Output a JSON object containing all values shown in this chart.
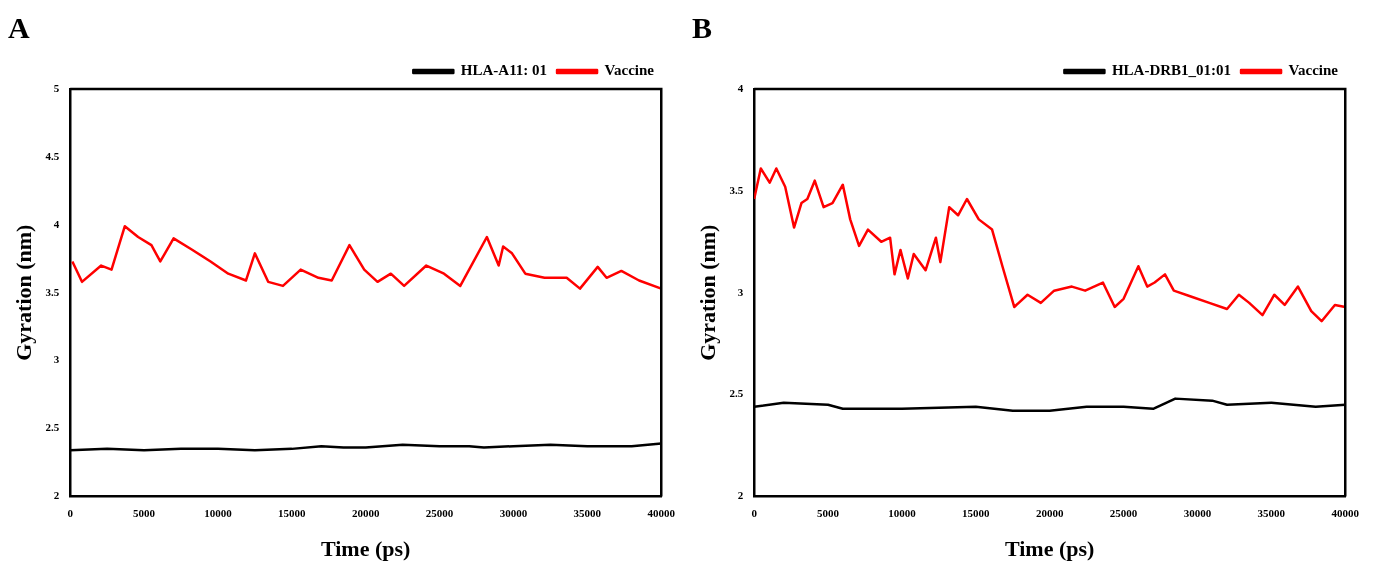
{
  "chart_data": [
    {
      "type": "line",
      "title": "A",
      "xlabel": "Time (ps)",
      "ylabel": "Gyration (nm)",
      "xlim": [
        0,
        40000
      ],
      "xticks": [
        0,
        5000,
        10000,
        15000,
        20000,
        25000,
        30000,
        35000,
        40000
      ],
      "ylim": [
        2,
        5
      ],
      "yticks": [
        2,
        2.5,
        3,
        3.5,
        4,
        4.5,
        5
      ],
      "grid": false,
      "legend": "top right",
      "series": [
        {
          "name": "HLA-A11: 01",
          "color": "#000000",
          "x": [
            0,
            2500,
            5000,
            7500,
            10000,
            12500,
            15000,
            17000,
            18500,
            20000,
            22500,
            25000,
            27000,
            28000,
            30000,
            32500,
            35000,
            38000,
            40000
          ],
          "values": [
            2.34,
            2.35,
            2.34,
            2.35,
            2.35,
            2.34,
            2.35,
            2.37,
            2.36,
            2.36,
            2.38,
            2.37,
            2.37,
            2.36,
            2.37,
            2.38,
            2.37,
            2.37,
            2.39
          ]
        },
        {
          "name": "Vaccine",
          "color": "#ff0000",
          "x": [
            150,
            800,
            2100,
            2800,
            3700,
            4600,
            5500,
            6100,
            7000,
            8200,
            9500,
            10700,
            11900,
            12500,
            13400,
            14400,
            15600,
            16800,
            17700,
            18900,
            19900,
            20800,
            21700,
            22600,
            24100,
            25300,
            26400,
            28200,
            29000,
            29300,
            29900,
            30800,
            32100,
            33600,
            34500,
            35700,
            36300,
            37300,
            38500,
            40000
          ],
          "values": [
            3.73,
            3.58,
            3.7,
            3.67,
            3.99,
            3.91,
            3.85,
            3.73,
            3.9,
            3.82,
            3.73,
            3.64,
            3.59,
            3.79,
            3.58,
            3.55,
            3.67,
            3.61,
            3.59,
            3.85,
            3.67,
            3.58,
            3.64,
            3.55,
            3.7,
            3.64,
            3.55,
            3.91,
            3.7,
            3.84,
            3.79,
            3.64,
            3.61,
            3.61,
            3.53,
            3.69,
            3.61,
            3.66,
            3.59,
            3.53
          ]
        }
      ]
    },
    {
      "type": "line",
      "title": "B",
      "xlabel": "Time (ps)",
      "ylabel": "Gyration (nm)",
      "xlim": [
        0,
        40000
      ],
      "xticks": [
        0,
        5000,
        10000,
        15000,
        20000,
        25000,
        30000,
        35000,
        40000
      ],
      "ylim": [
        2,
        4
      ],
      "yticks": [
        2,
        2.5,
        3,
        3.5,
        4
      ],
      "grid": false,
      "legend": "top right",
      "series": [
        {
          "name": "HLA-DRB1_01:01",
          "color": "#000000",
          "x": [
            0,
            2000,
            5000,
            6000,
            10000,
            15000,
            17500,
            20000,
            22500,
            25000,
            27000,
            28500,
            31000,
            32000,
            35000,
            38000,
            40000
          ],
          "values": [
            2.44,
            2.46,
            2.45,
            2.43,
            2.43,
            2.44,
            2.42,
            2.42,
            2.44,
            2.44,
            2.43,
            2.48,
            2.47,
            2.45,
            2.46,
            2.44,
            2.45
          ]
        },
        {
          "name": "Vaccine",
          "color": "#ff0000",
          "x": [
            0,
            450,
            1050,
            1500,
            2100,
            2700,
            3200,
            3600,
            4100,
            4700,
            5300,
            6000,
            6500,
            7100,
            7700,
            8600,
            9200,
            9500,
            9900,
            10400,
            10800,
            11600,
            12300,
            12600,
            13200,
            13800,
            14400,
            15200,
            16100,
            16800,
            17600,
            18500,
            19400,
            20300,
            21500,
            22400,
            23600,
            24400,
            25000,
            26000,
            26600,
            27100,
            27800,
            28400,
            29600,
            30800,
            32000,
            32800,
            33500,
            34400,
            35200,
            35900,
            36800,
            37700,
            38400,
            39300,
            40000
          ],
          "values": [
            3.46,
            3.61,
            3.54,
            3.61,
            3.52,
            3.32,
            3.44,
            3.46,
            3.55,
            3.42,
            3.44,
            3.53,
            3.36,
            3.23,
            3.31,
            3.25,
            3.27,
            3.09,
            3.21,
            3.07,
            3.19,
            3.11,
            3.27,
            3.15,
            3.42,
            3.38,
            3.46,
            3.36,
            3.31,
            3.13,
            2.93,
            2.99,
            2.95,
            3.01,
            3.03,
            3.01,
            3.05,
            2.93,
            2.97,
            3.13,
            3.03,
            3.05,
            3.09,
            3.01,
            2.98,
            2.95,
            2.92,
            2.99,
            2.95,
            2.89,
            2.99,
            2.94,
            3.03,
            2.91,
            2.86,
            2.94,
            2.93
          ]
        }
      ]
    }
  ]
}
